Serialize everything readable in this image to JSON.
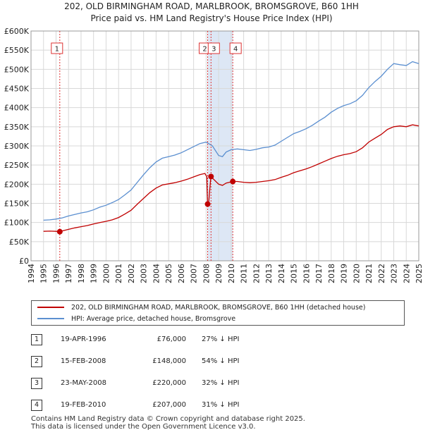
{
  "chart_data": {
    "type": "line",
    "title": "202, OLD BIRMINGHAM ROAD, MARLBROOK, BROMSGROVE, B60 1HH",
    "subtitle": "Price paid vs. HM Land Registry's House Price Index (HPI)",
    "xlabel": "",
    "ylabel": "",
    "xlim": [
      1994,
      2025
    ],
    "ylim": [
      0,
      600000
    ],
    "grid": true,
    "x_ticks": [
      "1994",
      "1995",
      "1996",
      "1997",
      "1998",
      "1999",
      "2000",
      "2001",
      "2002",
      "2003",
      "2004",
      "2005",
      "2006",
      "2007",
      "2008",
      "2009",
      "2010",
      "2011",
      "2012",
      "2013",
      "2014",
      "2015",
      "2016",
      "2017",
      "2018",
      "2019",
      "2020",
      "2021",
      "2022",
      "2023",
      "2024",
      "2025"
    ],
    "y_ticks": [
      {
        "value": 0,
        "label": "£0"
      },
      {
        "value": 50000,
        "label": "£50K"
      },
      {
        "value": 100000,
        "label": "£100K"
      },
      {
        "value": 150000,
        "label": "£150K"
      },
      {
        "value": 200000,
        "label": "£200K"
      },
      {
        "value": 250000,
        "label": "£250K"
      },
      {
        "value": 300000,
        "label": "£300K"
      },
      {
        "value": 350000,
        "label": "£350K"
      },
      {
        "value": 400000,
        "label": "£400K"
      },
      {
        "value": 450000,
        "label": "£450K"
      },
      {
        "value": 500000,
        "label": "£500K"
      },
      {
        "value": 550000,
        "label": "£550K"
      },
      {
        "value": 600000,
        "label": "£600K"
      }
    ],
    "series": [
      {
        "name": "HPI: Average price, detached house, Bromsgrove",
        "color": "#5b8fd0",
        "points": [
          [
            1995.0,
            106000
          ],
          [
            1995.5,
            107000
          ],
          [
            1996.0,
            109000
          ],
          [
            1996.5,
            112000
          ],
          [
            1997.0,
            117000
          ],
          [
            1997.5,
            121000
          ],
          [
            1998.0,
            125000
          ],
          [
            1998.5,
            128000
          ],
          [
            1999.0,
            133000
          ],
          [
            1999.5,
            140000
          ],
          [
            2000.0,
            145000
          ],
          [
            2000.5,
            152000
          ],
          [
            2001.0,
            160000
          ],
          [
            2001.5,
            172000
          ],
          [
            2002.0,
            185000
          ],
          [
            2002.5,
            205000
          ],
          [
            2003.0,
            225000
          ],
          [
            2003.5,
            243000
          ],
          [
            2004.0,
            258000
          ],
          [
            2004.5,
            268000
          ],
          [
            2005.0,
            272000
          ],
          [
            2005.5,
            276000
          ],
          [
            2006.0,
            282000
          ],
          [
            2006.5,
            290000
          ],
          [
            2007.0,
            298000
          ],
          [
            2007.5,
            306000
          ],
          [
            2008.0,
            310000
          ],
          [
            2008.5,
            300000
          ],
          [
            2009.0,
            275000
          ],
          [
            2009.3,
            272000
          ],
          [
            2009.6,
            284000
          ],
          [
            2010.0,
            290000
          ],
          [
            2010.5,
            292000
          ],
          [
            2011.0,
            290000
          ],
          [
            2011.5,
            288000
          ],
          [
            2012.0,
            291000
          ],
          [
            2012.5,
            295000
          ],
          [
            2013.0,
            297000
          ],
          [
            2013.5,
            302000
          ],
          [
            2014.0,
            312000
          ],
          [
            2014.5,
            322000
          ],
          [
            2015.0,
            332000
          ],
          [
            2015.5,
            338000
          ],
          [
            2016.0,
            345000
          ],
          [
            2016.5,
            354000
          ],
          [
            2017.0,
            365000
          ],
          [
            2017.5,
            375000
          ],
          [
            2018.0,
            388000
          ],
          [
            2018.5,
            398000
          ],
          [
            2019.0,
            405000
          ],
          [
            2019.5,
            410000
          ],
          [
            2020.0,
            418000
          ],
          [
            2020.5,
            432000
          ],
          [
            2021.0,
            452000
          ],
          [
            2021.5,
            468000
          ],
          [
            2022.0,
            482000
          ],
          [
            2022.5,
            500000
          ],
          [
            2023.0,
            515000
          ],
          [
            2023.5,
            512000
          ],
          [
            2024.0,
            510000
          ],
          [
            2024.5,
            520000
          ],
          [
            2025.0,
            515000
          ]
        ]
      },
      {
        "name": "202, OLD BIRMINGHAM ROAD, MARLBROOK, BROMSGROVE, B60 1HH (detached house)",
        "color": "#c00000",
        "points": [
          [
            1995.0,
            77000
          ],
          [
            1995.5,
            77500
          ],
          [
            1996.0,
            77000
          ],
          [
            1996.3,
            76000
          ],
          [
            1996.5,
            78000
          ],
          [
            1997.0,
            82000
          ],
          [
            1997.5,
            86000
          ],
          [
            1998.0,
            89000
          ],
          [
            1998.5,
            92000
          ],
          [
            1999.0,
            96000
          ],
          [
            1999.5,
            100000
          ],
          [
            2000.0,
            103000
          ],
          [
            2000.5,
            107000
          ],
          [
            2001.0,
            113000
          ],
          [
            2001.5,
            122000
          ],
          [
            2002.0,
            132000
          ],
          [
            2002.5,
            148000
          ],
          [
            2003.0,
            163000
          ],
          [
            2003.5,
            178000
          ],
          [
            2004.0,
            190000
          ],
          [
            2004.5,
            198000
          ],
          [
            2005.0,
            201000
          ],
          [
            2005.5,
            204000
          ],
          [
            2006.0,
            208000
          ],
          [
            2006.5,
            213000
          ],
          [
            2007.0,
            219000
          ],
          [
            2007.5,
            225000
          ],
          [
            2007.9,
            228000
          ],
          [
            2008.05,
            220000
          ],
          [
            2008.12,
            148000
          ],
          [
            2008.2,
            150000
          ],
          [
            2008.38,
            220000
          ],
          [
            2008.6,
            213000
          ],
          [
            2009.0,
            200000
          ],
          [
            2009.3,
            197000
          ],
          [
            2009.6,
            203000
          ],
          [
            2010.13,
            207000
          ],
          [
            2010.5,
            207000
          ],
          [
            2011.0,
            205000
          ],
          [
            2011.5,
            204000
          ],
          [
            2012.0,
            205000
          ],
          [
            2012.5,
            207000
          ],
          [
            2013.0,
            209000
          ],
          [
            2013.5,
            212000
          ],
          [
            2014.0,
            218000
          ],
          [
            2014.5,
            223000
          ],
          [
            2015.0,
            230000
          ],
          [
            2015.5,
            235000
          ],
          [
            2016.0,
            240000
          ],
          [
            2016.5,
            246000
          ],
          [
            2017.0,
            253000
          ],
          [
            2017.5,
            260000
          ],
          [
            2018.0,
            267000
          ],
          [
            2018.5,
            273000
          ],
          [
            2019.0,
            277000
          ],
          [
            2019.5,
            280000
          ],
          [
            2020.0,
            285000
          ],
          [
            2020.5,
            295000
          ],
          [
            2021.0,
            310000
          ],
          [
            2021.5,
            320000
          ],
          [
            2022.0,
            330000
          ],
          [
            2022.5,
            343000
          ],
          [
            2023.0,
            350000
          ],
          [
            2023.5,
            352000
          ],
          [
            2024.0,
            350000
          ],
          [
            2024.5,
            355000
          ],
          [
            2025.0,
            352000
          ]
        ]
      }
    ],
    "sales": [
      {
        "id": "1",
        "x": 1996.3,
        "price": 76000
      },
      {
        "id": "2",
        "x": 2008.12,
        "price": 148000
      },
      {
        "id": "3",
        "x": 2008.39,
        "price": 220000
      },
      {
        "id": "4",
        "x": 2010.13,
        "price": 207000
      }
    ],
    "marker_labels": [
      "1",
      "2",
      "3",
      "4"
    ]
  },
  "legend": {
    "property_label": "202, OLD BIRMINGHAM ROAD, MARLBROOK, BROMSGROVE, B60 1HH (detached house)",
    "hpi_label": "HPI: Average price, detached house, Bromsgrove"
  },
  "transactions": [
    {
      "num": "1",
      "date": "19-APR-1996",
      "price": "£76,000",
      "pct": "27% ↓ HPI"
    },
    {
      "num": "2",
      "date": "15-FEB-2008",
      "price": "£148,000",
      "pct": "54% ↓ HPI"
    },
    {
      "num": "3",
      "date": "23-MAY-2008",
      "price": "£220,000",
      "pct": "32% ↓ HPI"
    },
    {
      "num": "4",
      "date": "19-FEB-2010",
      "price": "£207,000",
      "pct": "31% ↓ HPI"
    }
  ],
  "footer": {
    "line1": "Contains HM Land Registry data © Crown copyright and database right 2025.",
    "line2": "This data is licensed under the Open Government Licence v3.0."
  },
  "colors": {
    "property": "#c00000",
    "hpi": "#5b8fd0",
    "shade": "#dde7f5",
    "grid": "#d8d8d8"
  }
}
